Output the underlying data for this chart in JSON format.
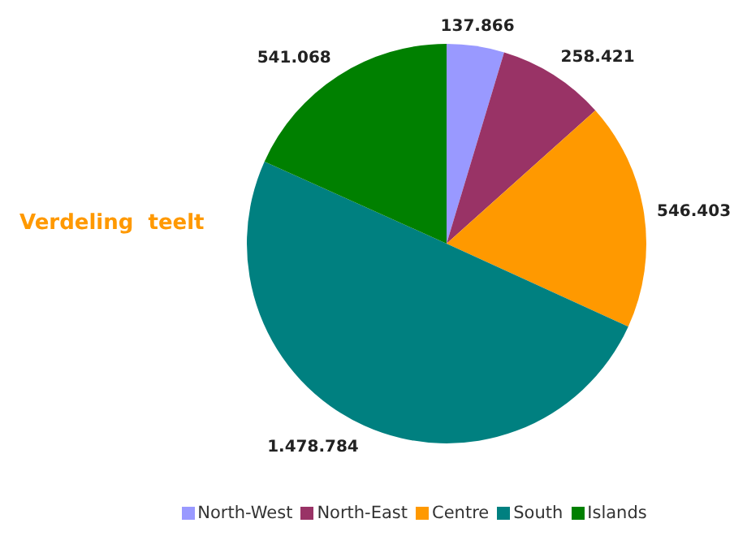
{
  "chart_data": {
    "type": "pie",
    "title": "Verdeling  teelt",
    "categories": [
      "North-West",
      "North-East",
      "Centre",
      "South",
      "Islands"
    ],
    "values": [
      137866,
      258421,
      546403,
      1478784,
      541068
    ],
    "colors": [
      "#9999ff",
      "#993366",
      "#ff9900",
      "#008080",
      "#008000"
    ],
    "value_labels": [
      "137.866",
      "258.421",
      "546.403",
      "1.478.784",
      "541.068"
    ],
    "legend": "bottom"
  }
}
